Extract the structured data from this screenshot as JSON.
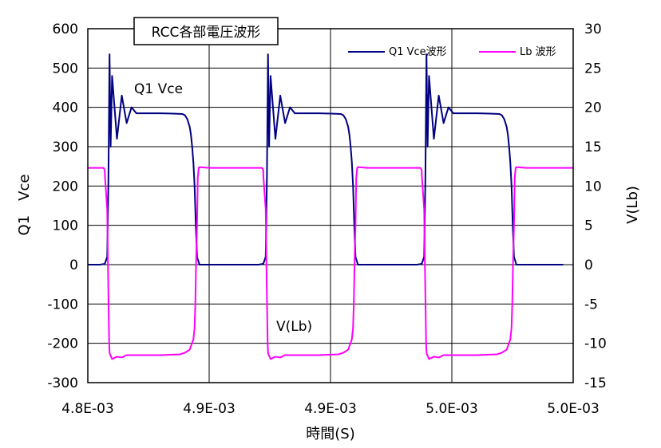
{
  "chart_data": {
    "type": "line",
    "title": "RCC各部電圧波形",
    "xlabel": "時間(S)",
    "ylabel_left": "Q1　Vce",
    "ylabel_right": "V(Lb)",
    "xlim": [
      0.0048,
      0.005
    ],
    "ylim_left": [
      -300,
      600
    ],
    "ylim_right": [
      -15,
      30
    ],
    "x_ticks": [
      0.0048,
      0.00485,
      0.0049,
      0.00495,
      0.005
    ],
    "x_tick_labels": [
      "4.8E-03",
      "4.9E-03",
      "4.9E-03",
      "5.0E-03",
      "5.0E-03"
    ],
    "y_ticks_left": [
      -300,
      -200,
      -100,
      0,
      100,
      200,
      300,
      400,
      500,
      600
    ],
    "y_tick_labels_left": [
      "-300",
      "-200",
      "-100",
      "0",
      "100",
      "200",
      "300",
      "400",
      "500",
      "600"
    ],
    "y_ticks_right": [
      -15,
      -10,
      -5,
      0,
      5,
      10,
      15,
      20,
      25,
      30
    ],
    "y_tick_labels_right": [
      "-15",
      "-10",
      "-5",
      "0",
      "5",
      "10",
      "15",
      "20",
      "25",
      "30"
    ],
    "grid": true,
    "legend_position": "top-right",
    "annotations": [
      {
        "text": "Q1 Vce",
        "x": 0.004819,
        "y": 440,
        "axis": "left"
      },
      {
        "text": "V(Lb)",
        "x": 0.004876,
        "y": -160,
        "axis": "left"
      }
    ],
    "period": 6.53e-05,
    "series": [
      {
        "name": "Q1 Vce波形",
        "axis": "left",
        "color": "#000080",
        "x": [
          0.0048,
          0.004805,
          0.004807,
          0.004808,
          0.0048085,
          0.00480895,
          0.0048094,
          0.00481,
          0.004812,
          0.004814,
          0.004816,
          0.004818,
          0.00482,
          0.004825,
          0.00483,
          0.004835,
          0.004839,
          0.00484,
          0.004841,
          0.004842,
          0.0048425,
          0.004843,
          0.0048435,
          0.004844,
          0.0048445,
          0.004845,
          0.004846,
          0.00485,
          0.004855,
          0.0048653
        ],
        "y": [
          0,
          0,
          2,
          20,
          220,
          535,
          300,
          480,
          320,
          430,
          360,
          400,
          385,
          385,
          385,
          384,
          383,
          380,
          370,
          350,
          330,
          300,
          260,
          200,
          100,
          20,
          0,
          0,
          0,
          0
        ]
      },
      {
        "name": "Lb 波形",
        "axis": "right",
        "color": "#ff00ff",
        "x": [
          0.0048,
          0.004804,
          0.0048065,
          0.004807,
          0.004807,
          0.004808,
          0.0048083,
          0.0048088,
          0.004809,
          0.00481,
          0.004812,
          0.004814,
          0.004816,
          0.00482,
          0.00483,
          0.004838,
          0.00484,
          0.004842,
          0.0048435,
          0.004844,
          0.0048443,
          0.0048446,
          0.004845,
          0.0048453,
          0.0048457,
          0.004846,
          0.00485,
          0.004855,
          0.0048653
        ],
        "y": [
          12.3,
          12.3,
          12.3,
          12.0,
          11.5,
          7.0,
          0,
          -10,
          -11.3,
          -12.0,
          -11.7,
          -11.8,
          -11.5,
          -11.5,
          -11.5,
          -11.4,
          -11.2,
          -10.8,
          -9.5,
          -8.0,
          -5.0,
          0,
          5,
          11.0,
          12.3,
          12.4,
          12.3,
          12.3,
          12.3
        ]
      }
    ]
  }
}
